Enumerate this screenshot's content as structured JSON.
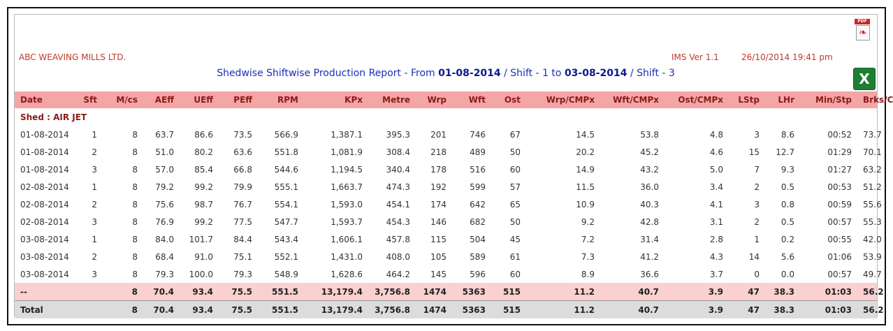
{
  "company": "ABC WEAVING MILLS LTD.",
  "version": "IMS Ver 1.1",
  "datetime": "26/10/2014 19:41 pm",
  "title": {
    "prefix": "Shedwise Shiftwise Production Report - From ",
    "from_date": "01-08-2014",
    "shift_sep1": " / Shift - 1 to ",
    "to_date": "03-08-2014",
    "shift_sep2": " / Shift - 3"
  },
  "icons": {
    "pdf": "pdf-icon",
    "excel": "excel-icon",
    "pdf_label": "PDF"
  },
  "columns": [
    "Date",
    "Sft",
    "M/cs",
    "AEff",
    "UEff",
    "PEff",
    "RPM",
    "KPx",
    "Metre",
    "Wrp",
    "Wft",
    "Ost",
    "Wrp/CMPx",
    "Wft/CMPx",
    "Ost/CMPx",
    "LStp",
    "LHr",
    "Min/Stp",
    "Brks/CMPx"
  ],
  "shed": "Shed : AIR JET",
  "rows": [
    [
      "01-08-2014",
      "1",
      "8",
      "63.7",
      "86.6",
      "73.5",
      "566.9",
      "1,387.1",
      "395.3",
      "201",
      "746",
      "67",
      "14.5",
      "53.8",
      "4.8",
      "3",
      "8.6",
      "00:52",
      "73.7"
    ],
    [
      "01-08-2014",
      "2",
      "8",
      "51.0",
      "80.2",
      "63.6",
      "551.8",
      "1,081.9",
      "308.4",
      "218",
      "489",
      "50",
      "20.2",
      "45.2",
      "4.6",
      "15",
      "12.7",
      "01:29",
      "70.1"
    ],
    [
      "01-08-2014",
      "3",
      "8",
      "57.0",
      "85.4",
      "66.8",
      "544.6",
      "1,194.5",
      "340.4",
      "178",
      "516",
      "60",
      "14.9",
      "43.2",
      "5.0",
      "7",
      "9.3",
      "01:27",
      "63.2"
    ],
    [
      "02-08-2014",
      "1",
      "8",
      "79.2",
      "99.2",
      "79.9",
      "555.1",
      "1,663.7",
      "474.3",
      "192",
      "599",
      "57",
      "11.5",
      "36.0",
      "3.4",
      "2",
      "0.5",
      "00:53",
      "51.2"
    ],
    [
      "02-08-2014",
      "2",
      "8",
      "75.6",
      "98.7",
      "76.7",
      "554.1",
      "1,593.0",
      "454.1",
      "174",
      "642",
      "65",
      "10.9",
      "40.3",
      "4.1",
      "3",
      "0.8",
      "00:59",
      "55.6"
    ],
    [
      "02-08-2014",
      "3",
      "8",
      "76.9",
      "99.2",
      "77.5",
      "547.7",
      "1,593.7",
      "454.3",
      "146",
      "682",
      "50",
      "9.2",
      "42.8",
      "3.1",
      "2",
      "0.5",
      "00:57",
      "55.3"
    ],
    [
      "03-08-2014",
      "1",
      "8",
      "84.0",
      "101.7",
      "84.4",
      "543.4",
      "1,606.1",
      "457.8",
      "115",
      "504",
      "45",
      "7.2",
      "31.4",
      "2.8",
      "1",
      "0.2",
      "00:55",
      "42.0"
    ],
    [
      "03-08-2014",
      "2",
      "8",
      "68.4",
      "91.0",
      "75.1",
      "552.1",
      "1,431.0",
      "408.0",
      "105",
      "589",
      "61",
      "7.3",
      "41.2",
      "4.3",
      "14",
      "5.6",
      "01:06",
      "53.9"
    ],
    [
      "03-08-2014",
      "3",
      "8",
      "79.3",
      "100.0",
      "79.3",
      "548.9",
      "1,628.6",
      "464.2",
      "145",
      "596",
      "60",
      "8.9",
      "36.6",
      "3.7",
      "0",
      "0.0",
      "00:57",
      "49.7"
    ]
  ],
  "subtotal": [
    "--",
    "",
    "8",
    "70.4",
    "93.4",
    "75.5",
    "551.5",
    "13,179.4",
    "3,756.8",
    "1474",
    "5363",
    "515",
    "11.2",
    "40.7",
    "3.9",
    "47",
    "38.3",
    "01:03",
    "56.2"
  ],
  "total": [
    "Total",
    "",
    "8",
    "70.4",
    "93.4",
    "75.5",
    "551.5",
    "13,179.4",
    "3,756.8",
    "1474",
    "5363",
    "515",
    "11.2",
    "40.7",
    "3.9",
    "47",
    "38.3",
    "01:03",
    "56.2"
  ]
}
